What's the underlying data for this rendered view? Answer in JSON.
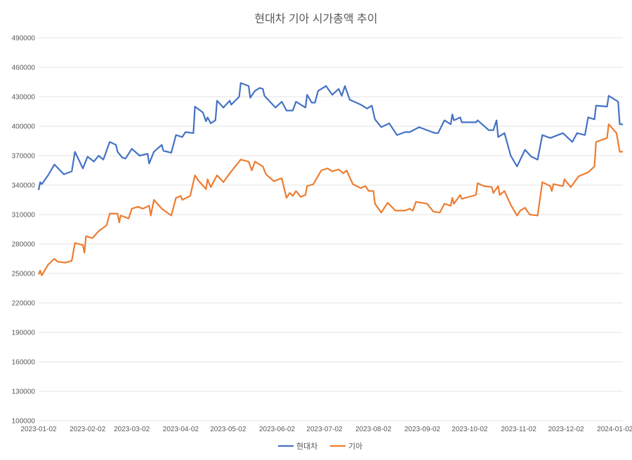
{
  "chart_data": {
    "type": "line",
    "title": "현대차 기아 시가총액 추이",
    "xlabel": "",
    "ylabel": "",
    "x_unit": "days since 2023-01-02",
    "xlim": [
      0,
      370
    ],
    "ylim": [
      100000,
      490000
    ],
    "y_ticks": [
      100000,
      130000,
      160000,
      190000,
      220000,
      250000,
      280000,
      310000,
      340000,
      370000,
      400000,
      430000,
      460000,
      490000
    ],
    "x_ticks": [
      {
        "day": 0,
        "label": "2023-01-02"
      },
      {
        "day": 31,
        "label": "2023-02-02"
      },
      {
        "day": 59,
        "label": "2023-03-02"
      },
      {
        "day": 90,
        "label": "2023-04-02"
      },
      {
        "day": 120,
        "label": "2023-05-02"
      },
      {
        "day": 151,
        "label": "2023-06-02"
      },
      {
        "day": 181,
        "label": "2023-07-02"
      },
      {
        "day": 212,
        "label": "2023-08-02"
      },
      {
        "day": 243,
        "label": "2023-09-02"
      },
      {
        "day": 273,
        "label": "2023-10-02"
      },
      {
        "day": 304,
        "label": "2023-11-02"
      },
      {
        "day": 334,
        "label": "2023-12-02"
      },
      {
        "day": 365,
        "label": "2024-01-02"
      }
    ],
    "grid": true,
    "legend_position": "bottom",
    "series": [
      {
        "name": "현대차",
        "color": "#4472C4",
        "points": [
          [
            0,
            335000
          ],
          [
            1,
            343000
          ],
          [
            2,
            341000
          ],
          [
            6,
            350000
          ],
          [
            10,
            361000
          ],
          [
            16,
            351000
          ],
          [
            21,
            354000
          ],
          [
            23,
            374000
          ],
          [
            28,
            357000
          ],
          [
            31,
            369000
          ],
          [
            35,
            364000
          ],
          [
            38,
            370000
          ],
          [
            41,
            366000
          ],
          [
            45,
            384000
          ],
          [
            49,
            381000
          ],
          [
            50,
            374000
          ],
          [
            53,
            368000
          ],
          [
            55,
            367000
          ],
          [
            59,
            377000
          ],
          [
            64,
            370000
          ],
          [
            69,
            372000
          ],
          [
            70,
            362000
          ],
          [
            73,
            374000
          ],
          [
            78,
            381000
          ],
          [
            79,
            375000
          ],
          [
            84,
            373000
          ],
          [
            87,
            391000
          ],
          [
            91,
            389000
          ],
          [
            93,
            394000
          ],
          [
            98,
            393000
          ],
          [
            99,
            420000
          ],
          [
            104,
            414000
          ],
          [
            106,
            405000
          ],
          [
            107,
            409000
          ],
          [
            109,
            403000
          ],
          [
            112,
            406000
          ],
          [
            113,
            426000
          ],
          [
            117,
            419000
          ],
          [
            121,
            426000
          ],
          [
            122,
            422000
          ],
          [
            127,
            430000
          ],
          [
            128,
            444000
          ],
          [
            133,
            441000
          ],
          [
            134,
            429000
          ],
          [
            137,
            436000
          ],
          [
            140,
            439000
          ],
          [
            142,
            438000
          ],
          [
            143,
            431000
          ],
          [
            150,
            419000
          ],
          [
            154,
            425000
          ],
          [
            157,
            416000
          ],
          [
            161,
            416000
          ],
          [
            163,
            425000
          ],
          [
            169,
            419000
          ],
          [
            170,
            432000
          ],
          [
            173,
            424000
          ],
          [
            175,
            424000
          ],
          [
            177,
            436000
          ],
          [
            179,
            438000
          ],
          [
            182,
            441000
          ],
          [
            186,
            432000
          ],
          [
            190,
            438000
          ],
          [
            192,
            431000
          ],
          [
            194,
            441000
          ],
          [
            197,
            427000
          ],
          [
            204,
            422000
          ],
          [
            208,
            418000
          ],
          [
            211,
            421000
          ],
          [
            213,
            407000
          ],
          [
            217,
            399000
          ],
          [
            222,
            403000
          ],
          [
            227,
            391000
          ],
          [
            232,
            394000
          ],
          [
            235,
            394000
          ],
          [
            241,
            399000
          ],
          [
            246,
            396000
          ],
          [
            251,
            393000
          ],
          [
            253,
            393000
          ],
          [
            257,
            406000
          ],
          [
            261,
            402000
          ],
          [
            262,
            412000
          ],
          [
            263,
            406000
          ],
          [
            267,
            409000
          ],
          [
            268,
            404000
          ],
          [
            277,
            404000
          ],
          [
            278,
            406000
          ],
          [
            283,
            399000
          ],
          [
            285,
            396000
          ],
          [
            288,
            396000
          ],
          [
            290,
            406000
          ],
          [
            291,
            389000
          ],
          [
            295,
            393000
          ],
          [
            299,
            370000
          ],
          [
            303,
            359000
          ],
          [
            308,
            376000
          ],
          [
            312,
            369000
          ],
          [
            316,
            366000
          ],
          [
            319,
            391000
          ],
          [
            324,
            388000
          ],
          [
            332,
            393000
          ],
          [
            338,
            384000
          ],
          [
            341,
            393000
          ],
          [
            346,
            391000
          ],
          [
            348,
            409000
          ],
          [
            352,
            407000
          ],
          [
            353,
            421000
          ],
          [
            360,
            420000
          ],
          [
            361,
            431000
          ],
          [
            367,
            425000
          ],
          [
            368,
            402000
          ],
          [
            370,
            402000
          ]
        ]
      },
      {
        "name": "기아",
        "color": "#ED7D31",
        "points": [
          [
            0,
            249000
          ],
          [
            1,
            253000
          ],
          [
            2,
            248000
          ],
          [
            6,
            259000
          ],
          [
            10,
            265000
          ],
          [
            12,
            262000
          ],
          [
            17,
            261000
          ],
          [
            21,
            263000
          ],
          [
            23,
            281000
          ],
          [
            28,
            279000
          ],
          [
            29,
            271000
          ],
          [
            30,
            288000
          ],
          [
            34,
            286000
          ],
          [
            38,
            293000
          ],
          [
            43,
            299000
          ],
          [
            45,
            311000
          ],
          [
            50,
            311000
          ],
          [
            51,
            302000
          ],
          [
            52,
            309000
          ],
          [
            57,
            306000
          ],
          [
            59,
            316000
          ],
          [
            63,
            318000
          ],
          [
            66,
            316000
          ],
          [
            70,
            319000
          ],
          [
            71,
            309000
          ],
          [
            73,
            325000
          ],
          [
            78,
            316000
          ],
          [
            84,
            309000
          ],
          [
            87,
            327000
          ],
          [
            90,
            329000
          ],
          [
            91,
            325000
          ],
          [
            96,
            329000
          ],
          [
            99,
            350000
          ],
          [
            101,
            345000
          ],
          [
            106,
            336000
          ],
          [
            107,
            346000
          ],
          [
            109,
            338000
          ],
          [
            113,
            350000
          ],
          [
            117,
            343000
          ],
          [
            121,
            352000
          ],
          [
            127,
            364000
          ],
          [
            128,
            366000
          ],
          [
            133,
            364000
          ],
          [
            135,
            355000
          ],
          [
            137,
            364000
          ],
          [
            142,
            359000
          ],
          [
            144,
            351000
          ],
          [
            149,
            344000
          ],
          [
            154,
            347000
          ],
          [
            157,
            327000
          ],
          [
            159,
            332000
          ],
          [
            161,
            329000
          ],
          [
            163,
            334000
          ],
          [
            166,
            328000
          ],
          [
            169,
            330000
          ],
          [
            170,
            339000
          ],
          [
            174,
            341000
          ],
          [
            179,
            355000
          ],
          [
            183,
            357000
          ],
          [
            186,
            354000
          ],
          [
            190,
            356000
          ],
          [
            193,
            352000
          ],
          [
            195,
            355000
          ],
          [
            199,
            341000
          ],
          [
            204,
            337000
          ],
          [
            207,
            339000
          ],
          [
            209,
            334000
          ],
          [
            212,
            334000
          ],
          [
            213,
            321000
          ],
          [
            217,
            312000
          ],
          [
            221,
            322000
          ],
          [
            226,
            314000
          ],
          [
            232,
            314000
          ],
          [
            235,
            316000
          ],
          [
            237,
            314000
          ],
          [
            239,
            323000
          ],
          [
            246,
            321000
          ],
          [
            250,
            313000
          ],
          [
            254,
            312000
          ],
          [
            257,
            321000
          ],
          [
            261,
            319000
          ],
          [
            262,
            327000
          ],
          [
            263,
            321000
          ],
          [
            267,
            330000
          ],
          [
            268,
            326000
          ],
          [
            277,
            330000
          ],
          [
            278,
            342000
          ],
          [
            282,
            339000
          ],
          [
            287,
            338000
          ],
          [
            288,
            332000
          ],
          [
            291,
            339000
          ],
          [
            292,
            330000
          ],
          [
            295,
            334000
          ],
          [
            299,
            320000
          ],
          [
            303,
            309000
          ],
          [
            305,
            314000
          ],
          [
            308,
            317000
          ],
          [
            311,
            310000
          ],
          [
            316,
            309000
          ],
          [
            319,
            343000
          ],
          [
            324,
            339000
          ],
          [
            325,
            334000
          ],
          [
            326,
            341000
          ],
          [
            332,
            339000
          ],
          [
            333,
            346000
          ],
          [
            337,
            338000
          ],
          [
            342,
            349000
          ],
          [
            348,
            353000
          ],
          [
            352,
            359000
          ],
          [
            353,
            384000
          ],
          [
            360,
            388000
          ],
          [
            361,
            402000
          ],
          [
            366,
            393000
          ],
          [
            368,
            374000
          ],
          [
            370,
            374000
          ]
        ]
      }
    ]
  }
}
